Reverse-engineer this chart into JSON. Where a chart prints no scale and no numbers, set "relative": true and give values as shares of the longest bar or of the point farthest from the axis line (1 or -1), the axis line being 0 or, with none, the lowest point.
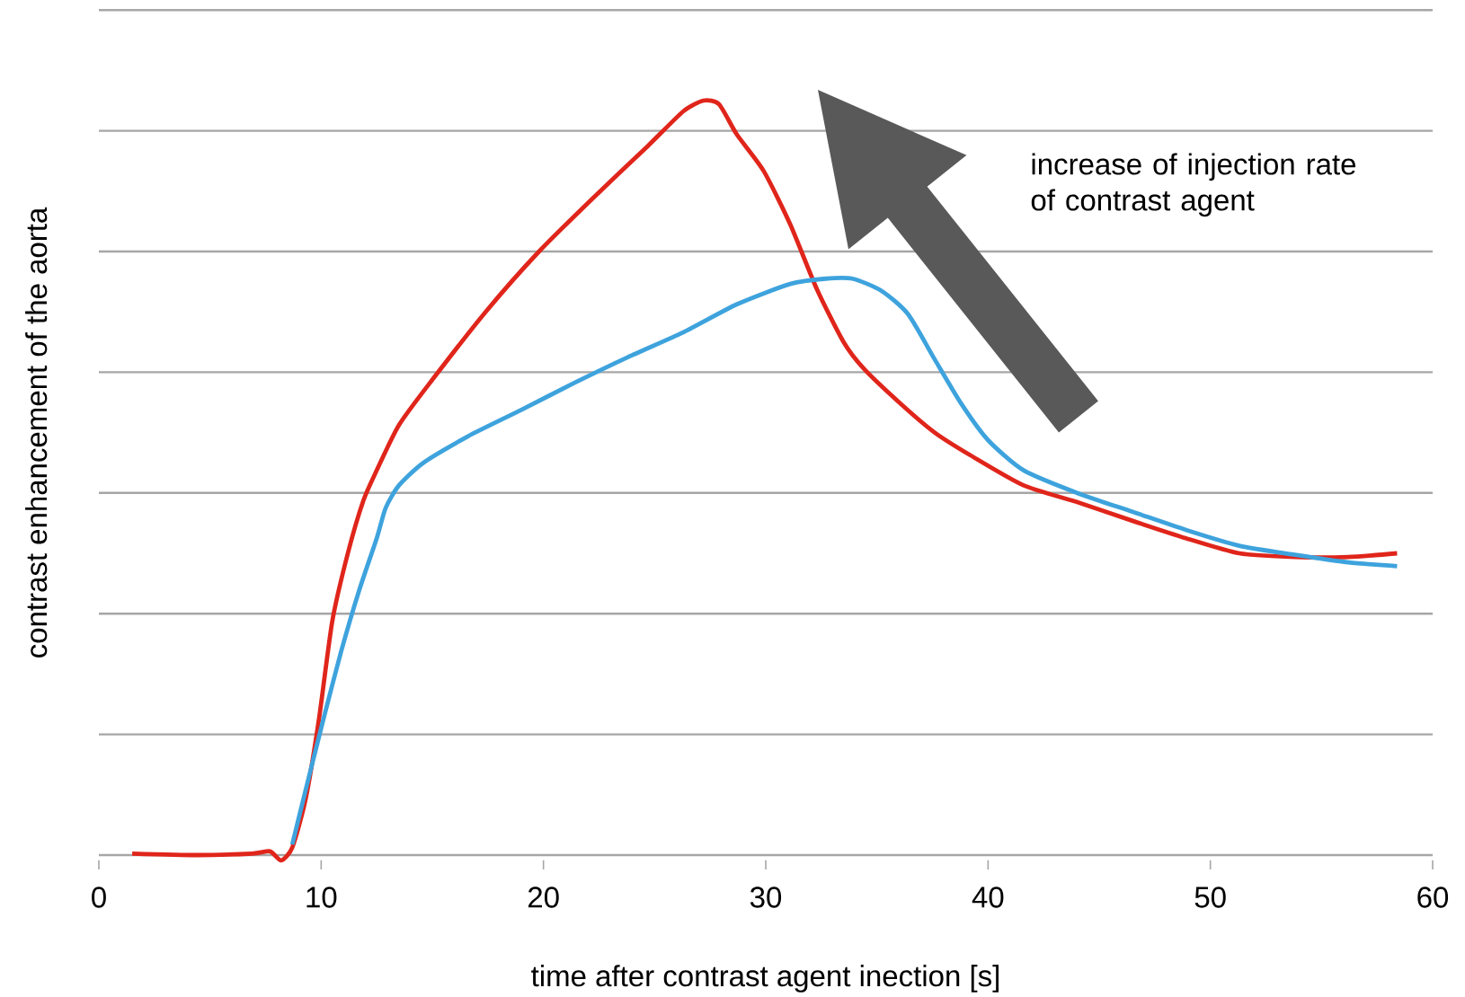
{
  "chart_data": {
    "type": "line",
    "relative": true,
    "xlabel": "time after contrast agent inection [s]",
    "ylabel": "contrast enhancement of the aorta",
    "xlim": [
      0,
      60
    ],
    "xticks": [
      0,
      10,
      20,
      30,
      40,
      50,
      60
    ],
    "grid": "y",
    "marker": "none",
    "line_style": "solid",
    "annotations": [
      "increase of injection rate of contrast agent"
    ],
    "series": [
      {
        "color": "#e0251b",
        "x": [
          1.5,
          4.4,
          6.9,
          7.7,
          8.2,
          8.7,
          9.3,
          9.9,
          10.5,
          11.2,
          11.9,
          12.5,
          13.5,
          15.0,
          17.4,
          19.8,
          22.2,
          24.7,
          26.3,
          27.2,
          27.9,
          28.7,
          29.9,
          31.1,
          32.3,
          33.5,
          34.4,
          36.0,
          37.6,
          39.2,
          41.6,
          44.1,
          46.5,
          48.9,
          51.3,
          53.8,
          56.2,
          58.4
        ],
        "values": [
          0.002,
          0,
          0.002,
          0.005,
          -0.007,
          0.01,
          0.074,
          0.18,
          0.31,
          0.4,
          0.47,
          0.51,
          0.57,
          0.63,
          0.72,
          0.8,
          0.87,
          0.94,
          0.986,
          1.0,
          0.995,
          0.955,
          0.907,
          0.836,
          0.75,
          0.68,
          0.645,
          0.6,
          0.56,
          0.53,
          0.49,
          0.467,
          0.443,
          0.42,
          0.4,
          0.395,
          0.395,
          0.4
        ]
      },
      {
        "color": "#3ea3dd",
        "x": [
          8.7,
          9.3,
          10.1,
          10.9,
          11.7,
          12.5,
          12.9,
          13.5,
          14.6,
          16.6,
          19.0,
          21.4,
          23.8,
          26.3,
          28.7,
          31.1,
          32.7,
          33.9,
          35.2,
          36.4,
          37.6,
          38.8,
          40.0,
          41.6,
          44.1,
          46.5,
          48.9,
          51.3,
          53.8,
          56.2,
          58.4
        ],
        "values": [
          0.014,
          0.086,
          0.18,
          0.27,
          0.35,
          0.42,
          0.46,
          0.49,
          0.52,
          0.555,
          0.59,
          0.626,
          0.66,
          0.693,
          0.73,
          0.757,
          0.764,
          0.764,
          0.748,
          0.717,
          0.657,
          0.598,
          0.55,
          0.51,
          0.479,
          0.455,
          0.431,
          0.41,
          0.398,
          0.388,
          0.383
        ]
      }
    ]
  }
}
